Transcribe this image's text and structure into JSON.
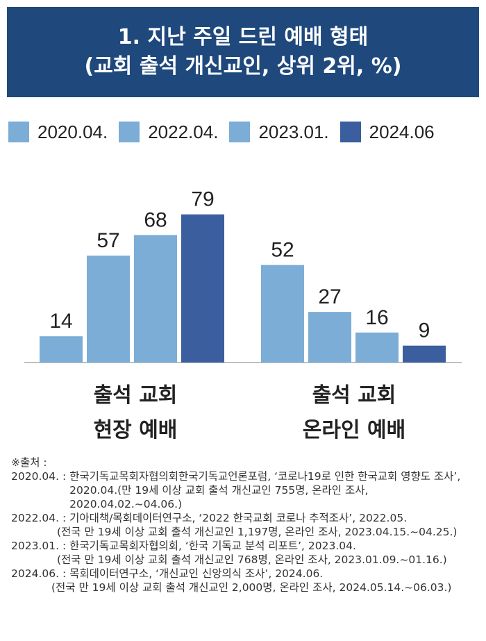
{
  "header": {
    "title_line1": "1. 지난 주일 드린 예배 형태",
    "title_line2": "(교회 출석 개신교인, 상위 2위, %)"
  },
  "colors": {
    "header_bg": "#1f497d",
    "series_light": "#7badd6",
    "series_dark": "#3b5f9e"
  },
  "chart_data": {
    "type": "bar",
    "categories": [
      "출석 교회\n현장 예배",
      "출석 교회\n온라인 예배"
    ],
    "category_lines": [
      [
        "출석 교회",
        "현장 예배"
      ],
      [
        "출석 교회",
        "온라인 예배"
      ]
    ],
    "series": [
      {
        "name": "2020.04.",
        "color": "#7badd6",
        "values": [
          14,
          52
        ]
      },
      {
        "name": "2022.04.",
        "color": "#7badd6",
        "values": [
          57,
          27
        ]
      },
      {
        "name": "2023.01.",
        "color": "#7badd6",
        "values": [
          68,
          16
        ]
      },
      {
        "name": "2024.06",
        "color": "#3b5f9e",
        "values": [
          79,
          9
        ]
      }
    ],
    "legend_position": "top",
    "grid": false,
    "data_labels": true
  },
  "sources": {
    "heading": "※출처 :",
    "entries": [
      {
        "key": "2020.04. : ",
        "line1": "한국기독교목회자협의회한국기독교언론포럼, ‘코로나19로 인한 한국교회 영향도 조사’, 2020.04.(만 19세 이상 교회 출석 개신교인 755명, 온라인 조사, 2020.04.02.~04.06.)"
      },
      {
        "key": "2022.04. : ",
        "line1": "기아대책/목회데이터연구소, ‘2022 한국교회 코로나 추적조사’, 2022.05.",
        "line2": "(전국 만 19세 이상 교회 출석 개신교인 1,197명, 온라인 조사, 2023.04.15.~04.25.)"
      },
      {
        "key": "2023.01. : ",
        "line1": "한국기독교목회자협의회, ‘한국 기독교 분석 리포트’, 2023.04.",
        "line2": "(전국 만 19세 이상 교회 출석 개신교인 768명, 온라인 조사, 2023.01.09.~01.16.)"
      },
      {
        "key": "2024.06. : ",
        "line1": "목회데이터연구소, ‘개신교인 신앙의식 조사’, 2024.06.",
        "line2": "(전국 만 19세 이상 교회 출석 개신교인 2,000명, 온라인 조사, 2024.05.14.~06.03.)"
      }
    ]
  }
}
